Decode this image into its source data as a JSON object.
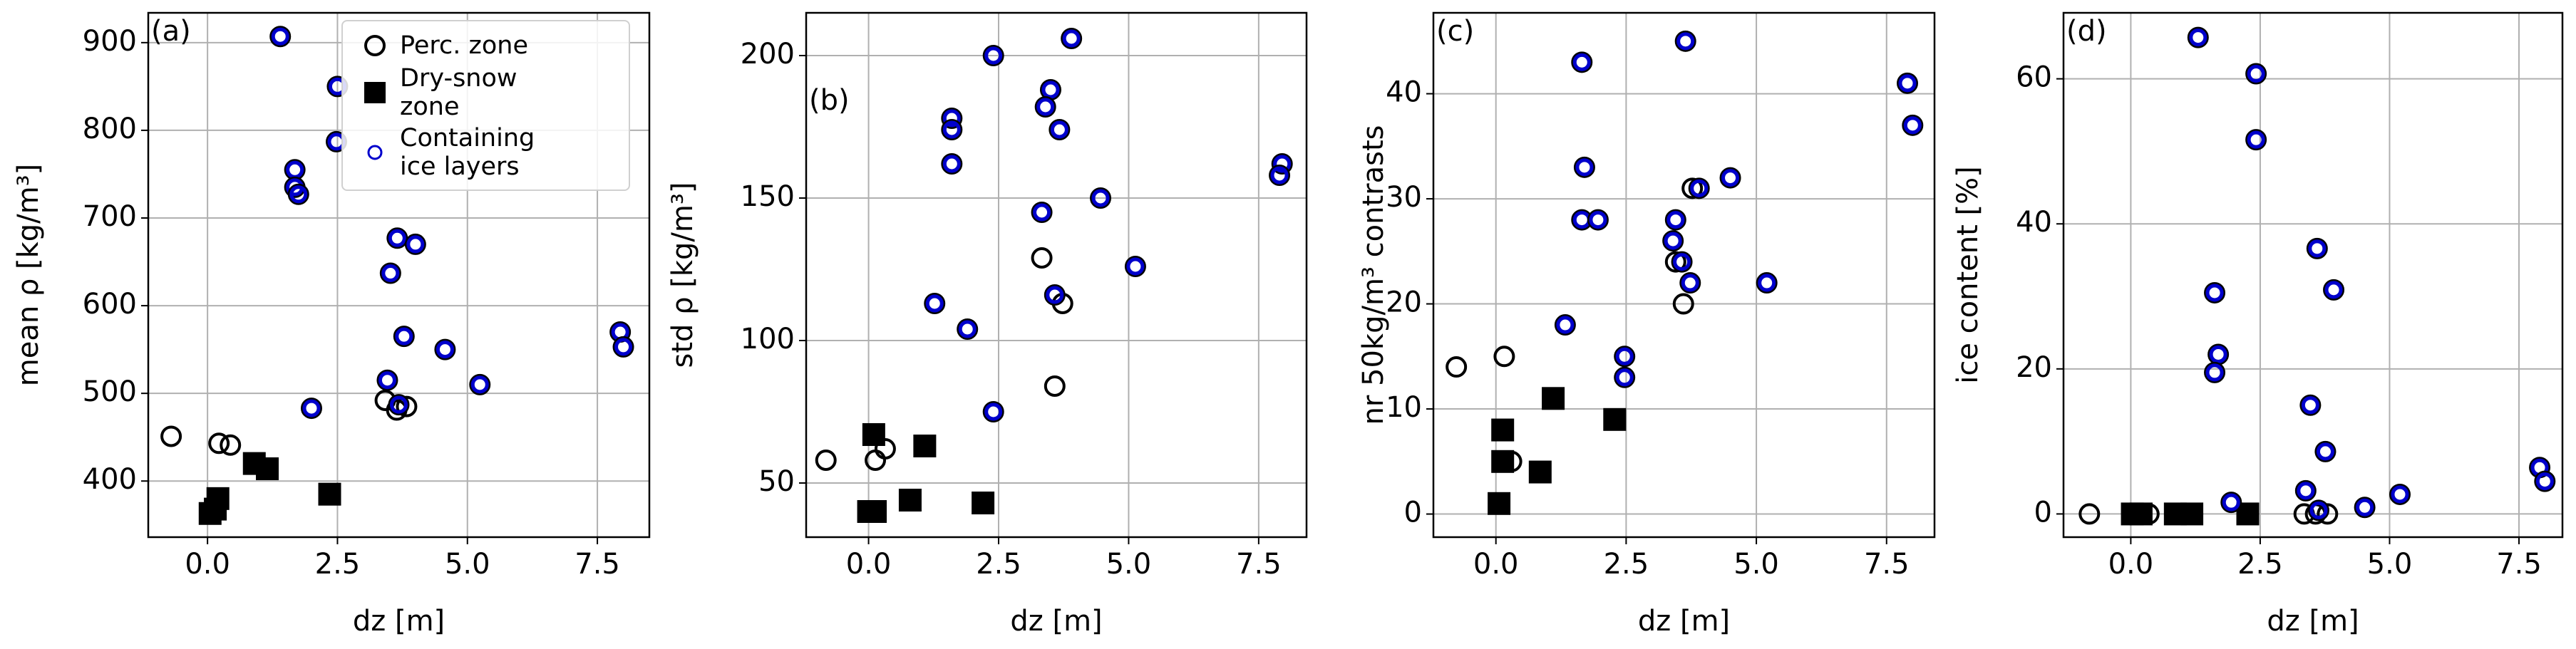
{
  "chart_data": [
    {
      "type": "scatter",
      "label": "(a)",
      "xlabel": "dz [m]",
      "ylabel": "mean ρ [kg/m³]",
      "xlim": [
        -1.14,
        8.5
      ],
      "ylim": [
        336,
        934
      ],
      "xticks": [
        {
          "value": 0,
          "label": "0.0"
        },
        2.5,
        {
          "value": 5,
          "label": "5.0"
        },
        7.5
      ],
      "yticks": [
        400,
        500,
        600,
        700,
        800,
        900
      ],
      "grid": true,
      "legend": "upper right",
      "series": [
        {
          "name": "Perc. zone",
          "color": "#000000",
          "marker": "open-circle",
          "x": [
            -0.7,
            0.22,
            0.44,
            3.42,
            3.64,
            3.83
          ],
          "values": [
            451,
            443,
            441,
            492,
            481,
            485
          ]
        },
        {
          "name": "Dry-snow zone",
          "color": "#000000",
          "marker": "square",
          "x": [
            0.05,
            0.15,
            0.2,
            0.9,
            1.15,
            2.35
          ],
          "values": [
            363,
            368,
            380,
            420,
            414,
            385
          ]
        },
        {
          "name": "Containing ice layers",
          "color": "#0000cc",
          "marker": "ice-circle",
          "x": [
            1.4,
            2.5,
            2.48,
            1.68,
            1.68,
            1.75,
            3.65,
            4.0,
            3.52,
            3.78,
            4.57,
            2.0,
            3.46,
            3.68,
            5.24,
            7.94,
            8.0
          ],
          "values": [
            907,
            850,
            787,
            755,
            735,
            727,
            677,
            670,
            637,
            565,
            550,
            483,
            515,
            487,
            510,
            570,
            553
          ]
        }
      ]
    },
    {
      "type": "scatter",
      "label": "(b)",
      "xlabel": "dz [m]",
      "ylabel": "std ρ [kg/m³]",
      "xlim": [
        -1.2,
        8.42
      ],
      "ylim": [
        31,
        215
      ],
      "xticks": [
        {
          "value": 0,
          "label": "0.0"
        },
        2.5,
        {
          "value": 5,
          "label": "5.0"
        },
        7.5
      ],
      "yticks": [
        50,
        100,
        150,
        200
      ],
      "grid": true,
      "series": [
        {
          "color": "#000000",
          "marker": "open-circle",
          "x": [
            -0.82,
            0.13,
            0.32,
            3.33,
            3.73,
            3.58
          ],
          "values": [
            58,
            58,
            62,
            129,
            113,
            84
          ]
        },
        {
          "color": "#000000",
          "marker": "square",
          "x": [
            0.1,
            0.0,
            0.13,
            1.08,
            0.8,
            2.2
          ],
          "values": [
            67,
            40,
            40,
            63,
            44,
            43
          ]
        },
        {
          "color": "#0000cc",
          "marker": "ice-circle",
          "x": [
            3.9,
            2.4,
            3.5,
            3.4,
            1.6,
            1.6,
            3.67,
            1.6,
            7.95,
            7.9,
            4.46,
            3.33,
            5.13,
            1.27,
            3.58,
            1.9,
            2.4
          ],
          "values": [
            206,
            200,
            188,
            182,
            178,
            174,
            174,
            162,
            162,
            158,
            150,
            145,
            126,
            113,
            116,
            104,
            75
          ]
        }
      ]
    },
    {
      "type": "scatter",
      "label": "(c)",
      "xlabel": "dz [m]",
      "ylabel": "nr 50kg/m³ contrasts",
      "xlim": [
        -1.2,
        8.42
      ],
      "ylim": [
        -2.2,
        47.7
      ],
      "xticks": [
        {
          "value": 0,
          "label": "0.0"
        },
        2.5,
        {
          "value": 5,
          "label": "5.0"
        },
        7.5
      ],
      "yticks": [
        0,
        10,
        20,
        30,
        40
      ],
      "grid": true,
      "series": [
        {
          "color": "#000000",
          "marker": "open-circle",
          "x": [
            -0.76,
            0.16,
            3.45,
            3.6,
            3.77,
            0.3
          ],
          "values": [
            14,
            15,
            24,
            20,
            31,
            5
          ]
        },
        {
          "color": "#000000",
          "marker": "square",
          "x": [
            1.1,
            0.13,
            0.13,
            0.85,
            2.28,
            0.06
          ],
          "values": [
            11,
            8,
            5,
            4,
            9,
            1
          ]
        },
        {
          "color": "#0000cc",
          "marker": "ice-circle",
          "x": [
            3.64,
            1.65,
            1.7,
            7.9,
            8.0,
            1.65,
            1.96,
            3.45,
            3.4,
            3.57,
            3.73,
            3.9,
            4.5,
            5.2,
            1.33,
            2.47,
            2.47
          ],
          "values": [
            45,
            43,
            33,
            41,
            37,
            28,
            28,
            28,
            26,
            24,
            22,
            31,
            32,
            22,
            18,
            15,
            13
          ]
        }
      ]
    },
    {
      "type": "scatter",
      "label": "(d)",
      "xlabel": "dz [m]",
      "ylabel": "ice content [%]",
      "xlim": [
        -1.3,
        8.34
      ],
      "ylim": [
        -3.2,
        69.1
      ],
      "xticks": [
        {
          "value": 0,
          "label": "0.0"
        },
        2.5,
        {
          "value": 5,
          "label": "5.0"
        },
        7.5
      ],
      "yticks": [
        0,
        20,
        40,
        60
      ],
      "grid": true,
      "series": [
        {
          "color": "#000000",
          "marker": "open-circle",
          "x": [
            -0.8,
            0.35,
            3.35,
            3.8,
            3.57
          ],
          "values": [
            0,
            0,
            0,
            0,
            0
          ]
        },
        {
          "color": "#000000",
          "marker": "square",
          "x": [
            0.03,
            0.2,
            0.86,
            1.18,
            2.26
          ],
          "values": [
            0,
            0,
            0,
            0,
            0
          ]
        },
        {
          "color": "#0000cc",
          "marker": "ice-circle",
          "x": [
            1.3,
            2.42,
            2.42,
            3.6,
            3.92,
            1.62,
            1.69,
            1.62,
            3.47,
            3.76,
            3.38,
            1.94,
            5.2,
            4.52,
            3.63,
            7.9,
            8.0
          ],
          "values": [
            65.7,
            60.7,
            51.6,
            36.6,
            30.9,
            30.5,
            22,
            19.5,
            15,
            8.6,
            3.2,
            1.6,
            2.7,
            0.9,
            0.5,
            6.4,
            4.5
          ]
        }
      ]
    }
  ]
}
